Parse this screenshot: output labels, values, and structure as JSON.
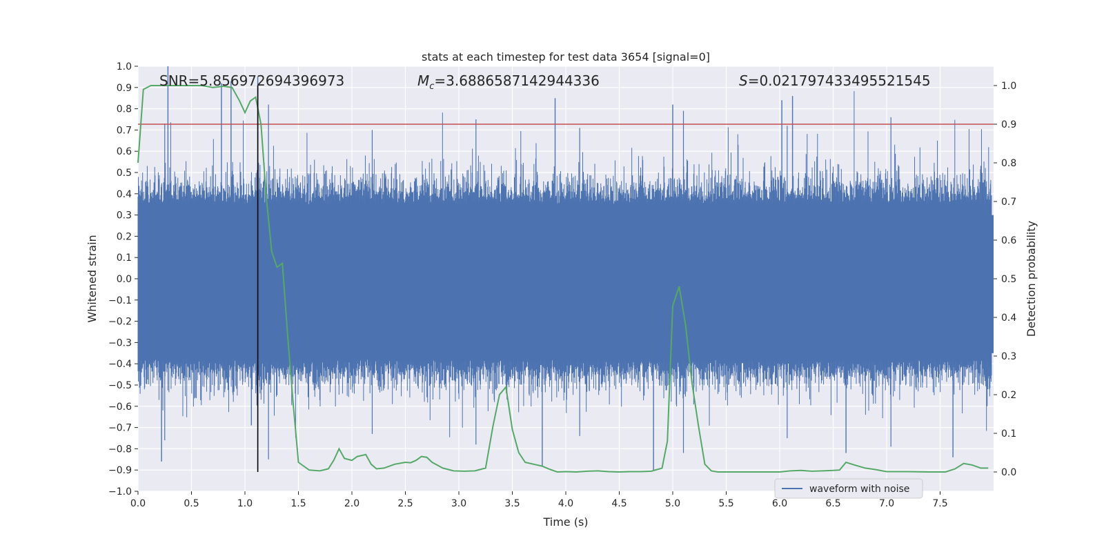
{
  "chart_data": {
    "type": "line",
    "title": "stats at each timestep for test data 3654 [signal=0]",
    "xlabel": "Time (s)",
    "ylabel": "Whitened strain",
    "ylabel_right": "Detection probability",
    "xlim": [
      0.0,
      8.0
    ],
    "ylim": [
      -1.0,
      1.0
    ],
    "ylim_right": [
      -0.05,
      1.05
    ],
    "x_ticks": [
      "0.0",
      "0.5",
      "1.0",
      "1.5",
      "2.0",
      "2.5",
      "3.0",
      "3.5",
      "4.0",
      "4.5",
      "5.0",
      "5.5",
      "6.0",
      "6.5",
      "7.0",
      "7.5"
    ],
    "y_ticks": [
      "1.0",
      "0.9",
      "0.8",
      "0.7",
      "0.6",
      "0.5",
      "0.4",
      "0.3",
      "0.2",
      "0.1",
      "0.0",
      "−0.1",
      "−0.2",
      "−0.3",
      "−0.4",
      "−0.5",
      "−0.6",
      "−0.7",
      "−0.8",
      "−0.9",
      "−1.0"
    ],
    "y_right_ticks": [
      "1.0",
      "0.9",
      "0.8",
      "0.7",
      "0.6",
      "0.5",
      "0.4",
      "0.3",
      "0.2",
      "0.1",
      "0.0"
    ],
    "annotations": {
      "snr": "SNR=5.856972694396973",
      "mc_symbol": "M",
      "mc_sub": "c",
      "mc_value": "=3.6886587142944336",
      "s_symbol": "S",
      "s_value": "=0.021797433495521545"
    },
    "threshold": 0.9,
    "marker_time": 1.12,
    "legend": [
      "waveform with noise"
    ],
    "colors": {
      "waveform": "#4c72b0",
      "probability": "#55a868",
      "threshold": "#c44e52",
      "marker": "#000000",
      "background": "#eaeaf2",
      "grid": "#ffffff"
    },
    "waveform_seed": 3654,
    "waveform_samples": 2400,
    "waveform_envelope": {
      "typical_peak": [
        0.3,
        0.55
      ],
      "max_peak": 1.0,
      "min_trough": -0.9
    },
    "series": [
      {
        "name": "detection probability",
        "axis": "right",
        "x": [
          0.0,
          0.05,
          0.12,
          0.2,
          0.3,
          0.4,
          0.5,
          0.6,
          0.7,
          0.8,
          0.88,
          0.95,
          1.0,
          1.05,
          1.1,
          1.15,
          1.2,
          1.25,
          1.3,
          1.35,
          1.4,
          1.45,
          1.5,
          1.6,
          1.7,
          1.78,
          1.83,
          1.88,
          1.93,
          2.0,
          2.05,
          2.13,
          2.18,
          2.23,
          2.3,
          2.4,
          2.5,
          2.55,
          2.6,
          2.65,
          2.7,
          2.75,
          2.85,
          2.95,
          3.05,
          3.15,
          3.25,
          3.32,
          3.38,
          3.44,
          3.5,
          3.56,
          3.62,
          3.7,
          3.78,
          3.84,
          3.92,
          4.0,
          4.1,
          4.2,
          4.3,
          4.4,
          4.5,
          4.6,
          4.7,
          4.8,
          4.9,
          4.95,
          5.0,
          5.06,
          5.12,
          5.18,
          5.24,
          5.3,
          5.36,
          5.42,
          5.5,
          5.6,
          5.8,
          6.0,
          6.1,
          6.2,
          6.3,
          6.4,
          6.5,
          6.56,
          6.62,
          6.7,
          6.8,
          6.9,
          7.0,
          7.2,
          7.4,
          7.55,
          7.64,
          7.72,
          7.8,
          7.88,
          7.95
        ],
        "values": [
          0.8,
          0.99,
          1.0,
          1.0,
          1.0,
          1.0,
          1.0,
          1.0,
          0.995,
          0.998,
          0.995,
          0.96,
          0.93,
          0.96,
          0.97,
          0.9,
          0.71,
          0.57,
          0.53,
          0.54,
          0.35,
          0.18,
          0.025,
          0.005,
          0.003,
          0.008,
          0.03,
          0.06,
          0.035,
          0.03,
          0.04,
          0.045,
          0.02,
          0.008,
          0.01,
          0.02,
          0.025,
          0.024,
          0.03,
          0.04,
          0.038,
          0.025,
          0.01,
          0.003,
          0.002,
          0.003,
          0.01,
          0.12,
          0.2,
          0.22,
          0.11,
          0.05,
          0.025,
          0.02,
          0.015,
          0.008,
          0.0,
          0.001,
          0.0,
          0.002,
          0.003,
          0.001,
          0.0,
          0.001,
          0.001,
          0.002,
          0.01,
          0.08,
          0.43,
          0.48,
          0.38,
          0.23,
          0.12,
          0.02,
          0.003,
          0.0,
          0.0,
          0.0,
          0.0,
          0.0,
          0.003,
          0.004,
          0.002,
          0.003,
          0.004,
          0.005,
          0.025,
          0.018,
          0.01,
          0.006,
          0.001,
          0.001,
          0.0,
          0.0,
          0.008,
          0.022,
          0.018,
          0.01,
          0.01
        ]
      }
    ]
  }
}
